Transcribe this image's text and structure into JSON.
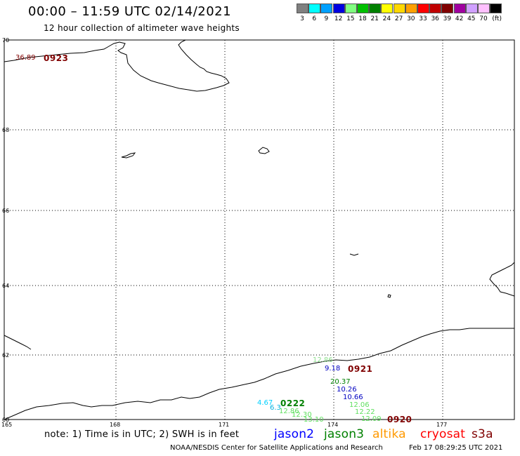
{
  "header": {
    "title": "00:00 – 11:59 UTC 02/14/2021",
    "subtitle": "12 hour collection of altimeter wave heights"
  },
  "color_scale": {
    "unit": "(ft)",
    "steps": [
      {
        "label": "3",
        "color": "#808080"
      },
      {
        "label": "6",
        "color": "#00ffff"
      },
      {
        "label": "9",
        "color": "#00a0ff"
      },
      {
        "label": "12",
        "color": "#0000e0"
      },
      {
        "label": "15",
        "color": "#80ff80"
      },
      {
        "label": "18",
        "color": "#00c000"
      },
      {
        "label": "21",
        "color": "#008000"
      },
      {
        "label": "24",
        "color": "#ffff00"
      },
      {
        "label": "27",
        "color": "#ffd700"
      },
      {
        "label": "30",
        "color": "#ffa000"
      },
      {
        "label": "33",
        "color": "#ff0000"
      },
      {
        "label": "36",
        "color": "#c00000"
      },
      {
        "label": "39",
        "color": "#800000"
      },
      {
        "label": "42",
        "color": "#a000a0"
      },
      {
        "label": "45",
        "color": "#d0a0ff"
      },
      {
        "label": "70",
        "color": "#ffc0ff"
      },
      {
        "label": "",
        "color": "#000000"
      }
    ]
  },
  "map": {
    "latitude_labels": [
      "70",
      "68",
      "66",
      "64",
      "62",
      "60"
    ],
    "longitude_labels": [
      "165",
      "168",
      "171",
      "174",
      "177"
    ],
    "annotations": [
      {
        "text": "36.89",
        "kind": "value",
        "color": "#800000"
      },
      {
        "text": "0923",
        "kind": "time",
        "color": "#800000"
      },
      {
        "text": "12.86",
        "kind": "value",
        "color": "#90e090"
      },
      {
        "text": "9.18",
        "kind": "value",
        "color": "#0000c0"
      },
      {
        "text": "0921",
        "kind": "time",
        "color": "#800000"
      },
      {
        "text": "20.37",
        "kind": "value",
        "color": "#008000"
      },
      {
        "text": "10.26",
        "kind": "value",
        "color": "#0000c0"
      },
      {
        "text": "10.66",
        "kind": "value",
        "color": "#0000c0"
      },
      {
        "text": "12.06",
        "kind": "value",
        "color": "#60e060"
      },
      {
        "text": "12.22",
        "kind": "value",
        "color": "#60e060"
      },
      {
        "text": "12.09",
        "kind": "value",
        "color": "#60e060"
      },
      {
        "text": "0920",
        "kind": "time",
        "color": "#800000"
      },
      {
        "text": "4.67",
        "kind": "value",
        "color": "#00d0ff"
      },
      {
        "text": "6.3",
        "kind": "value",
        "color": "#00b0e0"
      },
      {
        "text": "12.86",
        "kind": "value",
        "color": "#60e060"
      },
      {
        "text": "12.30",
        "kind": "value",
        "color": "#60e060"
      },
      {
        "text": "13.10",
        "kind": "value",
        "color": "#60e060"
      },
      {
        "text": "0222",
        "kind": "time",
        "color": "#008000"
      }
    ]
  },
  "footer": {
    "note": "note: 1) Time is in UTC; 2) SWH is in feet",
    "satellites": [
      {
        "name": "jason2",
        "color": "#0000ff"
      },
      {
        "name": "jason3",
        "color": "#008000"
      },
      {
        "name": "altika",
        "color": "#ff9900"
      },
      {
        "name": "cryosat",
        "color": "#ff0000"
      },
      {
        "name": "s3a",
        "color": "#800000"
      }
    ],
    "credit": "NOAA/NESDIS Center for Satellite Applications and Research",
    "timestamp": "Feb 17 08:29:25 UTC 2021"
  }
}
